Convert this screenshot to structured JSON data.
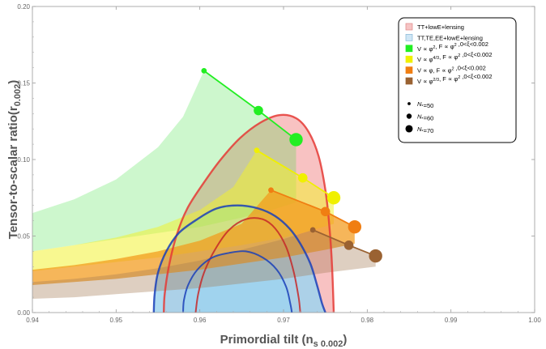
{
  "chart_data": {
    "type": "scatter",
    "title": "",
    "xlabel": "Primordial tilt (n",
    "xlabel_sub": "s 0.002",
    "xlabel_end": ")",
    "ylabel": "Tensor-to-scalar ratio(r",
    "ylabel_sub": "0.002",
    "ylabel_end": ")",
    "xlim": [
      0.94,
      1.0
    ],
    "ylim": [
      0.0,
      0.2
    ],
    "x_ticks": [
      "0.94",
      "0.95",
      "0.96",
      "0.97",
      "0.98",
      "0.99",
      "1.00"
    ],
    "y_ticks": [
      "0.00",
      "0.05",
      "0.10",
      "0.15",
      "0.20"
    ],
    "grid": false,
    "legend_position": "top-right",
    "contours": [
      {
        "name": "TT+lowE+lensing",
        "fill": "#f7b7b7",
        "outer": [
          [
            0.9557,
            0
          ],
          [
            0.9558,
            0.012
          ],
          [
            0.9563,
            0.03
          ],
          [
            0.9572,
            0.05
          ],
          [
            0.9585,
            0.068
          ],
          [
            0.9605,
            0.085
          ],
          [
            0.9625,
            0.1
          ],
          [
            0.9648,
            0.114
          ],
          [
            0.9672,
            0.124
          ],
          [
            0.9695,
            0.129
          ],
          [
            0.9715,
            0.127
          ],
          [
            0.973,
            0.118
          ],
          [
            0.9742,
            0.102
          ],
          [
            0.975,
            0.08
          ],
          [
            0.9755,
            0.055
          ],
          [
            0.9758,
            0.03
          ],
          [
            0.976,
            0
          ]
        ],
        "outer_edge": "#e53935",
        "inner": [
          [
            0.9595,
            0
          ],
          [
            0.9598,
            0.012
          ],
          [
            0.9605,
            0.026
          ],
          [
            0.9618,
            0.041
          ],
          [
            0.9635,
            0.054
          ],
          [
            0.9655,
            0.061
          ],
          [
            0.9675,
            0.061
          ],
          [
            0.969,
            0.055
          ],
          [
            0.9703,
            0.043
          ],
          [
            0.9712,
            0.027
          ],
          [
            0.9718,
            0.01
          ],
          [
            0.972,
            0
          ]
        ],
        "inner_edge": "#c62828"
      },
      {
        "name": "TT,TE,EE+lowE+lensing",
        "fill": "#9fd3ee",
        "outer": [
          [
            0.9545,
            0
          ],
          [
            0.9546,
            0.012
          ],
          [
            0.955,
            0.026
          ],
          [
            0.956,
            0.04
          ],
          [
            0.9575,
            0.052
          ],
          [
            0.9597,
            0.061
          ],
          [
            0.962,
            0.068
          ],
          [
            0.9645,
            0.07
          ],
          [
            0.967,
            0.068
          ],
          [
            0.969,
            0.063
          ],
          [
            0.9707,
            0.055
          ],
          [
            0.972,
            0.045
          ],
          [
            0.9732,
            0.032
          ],
          [
            0.974,
            0.018
          ],
          [
            0.9746,
            0.006
          ],
          [
            0.975,
            0
          ]
        ],
        "outer_edge": "#1a3fb8",
        "inner": [
          [
            0.958,
            0
          ],
          [
            0.9581,
            0.008
          ],
          [
            0.9586,
            0.018
          ],
          [
            0.9597,
            0.028
          ],
          [
            0.9615,
            0.036
          ],
          [
            0.9635,
            0.039
          ],
          [
            0.9655,
            0.04
          ],
          [
            0.9675,
            0.036
          ],
          [
            0.9692,
            0.028
          ],
          [
            0.9703,
            0.017
          ],
          [
            0.9708,
            0.006
          ],
          [
            0.971,
            0
          ]
        ],
        "inner_edge": "#1a3fb8"
      }
    ],
    "bands": [
      {
        "name": "V ∝ φ², F ∝ φ², 0<ξ<0.002",
        "color": "#3ee23e",
        "opacity": 0.26,
        "upper": [
          [
            0.94,
            0.065
          ],
          [
            0.945,
            0.074
          ],
          [
            0.95,
            0.087
          ],
          [
            0.955,
            0.108
          ],
          [
            0.958,
            0.128
          ],
          [
            0.9605,
            0.158
          ],
          [
            0.967,
            0.132
          ],
          [
            0.9715,
            0.113
          ]
        ],
        "lower": [
          [
            0.94,
            0.04
          ],
          [
            0.945,
            0.044
          ],
          [
            0.95,
            0.048
          ],
          [
            0.955,
            0.052
          ],
          [
            0.96,
            0.056
          ],
          [
            0.965,
            0.062
          ],
          [
            0.968,
            0.066
          ],
          [
            0.9715,
            0.072
          ]
        ]
      },
      {
        "name": "V ∝ φ^{4/3}, F ∝ φ², 0<ξ<0.002",
        "color": "#f2f22a",
        "opacity": 0.52,
        "upper": [
          [
            0.94,
            0.04
          ],
          [
            0.945,
            0.044
          ],
          [
            0.95,
            0.049
          ],
          [
            0.955,
            0.056
          ],
          [
            0.96,
            0.067
          ],
          [
            0.964,
            0.082
          ],
          [
            0.9668,
            0.106
          ],
          [
            0.972,
            0.088
          ],
          [
            0.976,
            0.075
          ]
        ],
        "lower": [
          [
            0.94,
            0.027
          ],
          [
            0.945,
            0.03
          ],
          [
            0.95,
            0.033
          ],
          [
            0.955,
            0.036
          ],
          [
            0.96,
            0.04
          ],
          [
            0.965,
            0.044
          ],
          [
            0.97,
            0.049
          ],
          [
            0.973,
            0.053
          ],
          [
            0.976,
            0.058
          ]
        ]
      },
      {
        "name": "V ∝ φ, F ∝ φ², 0<ξ<0.002",
        "color": "#f39a1b",
        "opacity": 0.72,
        "upper": [
          [
            0.94,
            0.028
          ],
          [
            0.945,
            0.031
          ],
          [
            0.95,
            0.035
          ],
          [
            0.955,
            0.04
          ],
          [
            0.96,
            0.047
          ],
          [
            0.965,
            0.058
          ],
          [
            0.9685,
            0.08
          ],
          [
            0.975,
            0.066
          ],
          [
            0.9785,
            0.056
          ]
        ],
        "lower": [
          [
            0.94,
            0.018
          ],
          [
            0.945,
            0.02
          ],
          [
            0.95,
            0.022
          ],
          [
            0.955,
            0.025
          ],
          [
            0.96,
            0.028
          ],
          [
            0.965,
            0.032
          ],
          [
            0.97,
            0.036
          ],
          [
            0.975,
            0.041
          ],
          [
            0.9785,
            0.045
          ]
        ]
      },
      {
        "name": "V ∝ φ^{2/3}, F ∝ φ², 0<ξ<0.002",
        "color": "#a37a52",
        "opacity": 0.36,
        "upper": [
          [
            0.94,
            0.02
          ],
          [
            0.945,
            0.022
          ],
          [
            0.95,
            0.025
          ],
          [
            0.955,
            0.029
          ],
          [
            0.96,
            0.034
          ],
          [
            0.965,
            0.041
          ],
          [
            0.97,
            0.048
          ],
          [
            0.9735,
            0.054
          ],
          [
            0.9778,
            0.044
          ],
          [
            0.981,
            0.037
          ]
        ],
        "lower": [
          [
            0.94,
            0.009
          ],
          [
            0.945,
            0.01
          ],
          [
            0.95,
            0.012
          ],
          [
            0.955,
            0.014
          ],
          [
            0.96,
            0.016
          ],
          [
            0.965,
            0.019
          ],
          [
            0.97,
            0.022
          ],
          [
            0.975,
            0.026
          ],
          [
            0.981,
            0.03
          ]
        ]
      }
    ],
    "series": [
      {
        "name": "V ∝ φ², F ∝ φ², 0<ξ<0.002",
        "color": "#22ee22",
        "x": [
          0.9605,
          0.967,
          0.9715
        ],
        "y": [
          0.158,
          0.132,
          0.113
        ],
        "N": [
          50,
          60,
          70
        ]
      },
      {
        "name": "V ∝ φ^{4/3}, F ∝ φ², 0<ξ<0.002",
        "color": "#f0f000",
        "x": [
          0.9668,
          0.9723,
          0.976
        ],
        "y": [
          0.106,
          0.088,
          0.075
        ],
        "N": [
          50,
          60,
          70
        ]
      },
      {
        "name": "V ∝ φ, F ∝ φ², 0<ξ<0.002",
        "color": "#f07e12",
        "x": [
          0.9685,
          0.975,
          0.9785
        ],
        "y": [
          0.08,
          0.066,
          0.056
        ],
        "N": [
          50,
          60,
          70
        ]
      },
      {
        "name": "V ∝ φ^{2/3}, F ∝ φ², 0<ξ<0.002",
        "color": "#9a6232",
        "x": [
          0.9735,
          0.9778,
          0.981
        ],
        "y": [
          0.054,
          0.044,
          0.037
        ],
        "N": [
          50,
          60,
          70
        ]
      }
    ],
    "legend": {
      "items": [
        {
          "swatch": "#f6c4c4",
          "border": "#e08888",
          "parts": [
            {
              "t": "TT+lowE+lensing"
            }
          ]
        },
        {
          "swatch": "#cfe6f5",
          "border": "#88b8d8",
          "parts": [
            {
              "t": "TT,TE,EE+lowE+lensing"
            }
          ]
        },
        {
          "swatch": "#22ee22",
          "border": "#22ee22",
          "parts": [
            {
              "t": "V ∝ φ"
            },
            {
              "t": "2",
              "sup": true
            },
            {
              "t": ", F ∝ φ"
            },
            {
              "t": "2",
              "sup": true
            },
            {
              "t": " ,0<ξ<0.002"
            }
          ]
        },
        {
          "swatch": "#f0f000",
          "border": "#f0f000",
          "parts": [
            {
              "t": "V ∝ φ"
            },
            {
              "t": "4/3",
              "sup": true
            },
            {
              "t": ", F ∝ φ"
            },
            {
              "t": "2",
              "sup": true
            },
            {
              "t": " ,0<ξ<0.002"
            }
          ]
        },
        {
          "swatch": "#f07e12",
          "border": "#f07e12",
          "parts": [
            {
              "t": "V ∝ φ, F ∝ φ"
            },
            {
              "t": "2",
              "sup": true
            },
            {
              "t": " ,0<ξ<0.002"
            }
          ]
        },
        {
          "swatch": "#9a6232",
          "border": "#9a6232",
          "parts": [
            {
              "t": "V ∝ φ"
            },
            {
              "t": "2/3",
              "sup": true
            },
            {
              "t": ", F ∝ φ"
            },
            {
              "t": "2",
              "sup": true
            },
            {
              "t": " ,0<ξ<0.002"
            }
          ]
        }
      ],
      "n_items": [
        {
          "N": 50,
          "parts": [
            {
              "t": "N",
              "it": true
            },
            {
              "t": "*",
              "sub": true
            },
            {
              "t": "=50"
            }
          ]
        },
        {
          "N": 60,
          "parts": [
            {
              "t": "N",
              "it": true
            },
            {
              "t": "*",
              "sub": true
            },
            {
              "t": "=60"
            }
          ]
        },
        {
          "N": 70,
          "parts": [
            {
              "t": "N",
              "it": true
            },
            {
              "t": "*",
              "sub": true
            },
            {
              "t": "=70"
            }
          ]
        }
      ]
    }
  }
}
